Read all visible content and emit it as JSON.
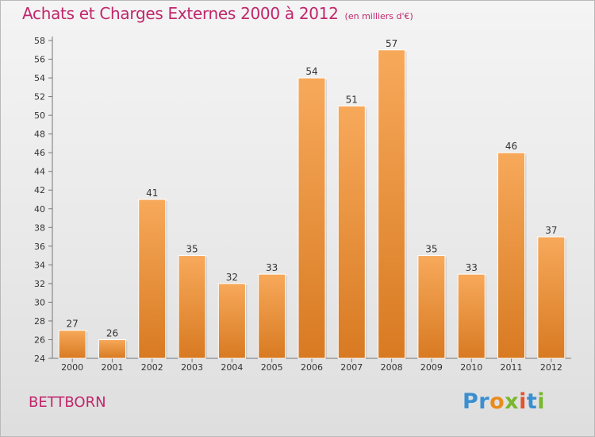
{
  "title": "Achats et Charges Externes 2000 à 2012",
  "subtitle": "(en milliers d'€)",
  "place": "BETTBORN",
  "logo": {
    "p1": "Pr",
    "p2": "o",
    "p3": "x",
    "p4": "i",
    "p5": "t",
    "p6": "i"
  },
  "colors": {
    "bar_light": "#f7a95a",
    "bar_dark": "#d87a22",
    "title": "#c0266b"
  },
  "chart_data": {
    "type": "bar",
    "categories": [
      "2000",
      "2001",
      "2002",
      "2003",
      "2004",
      "2005",
      "2006",
      "2007",
      "2008",
      "2009",
      "2010",
      "2011",
      "2012"
    ],
    "values": [
      27,
      26,
      41,
      35,
      32,
      33,
      54,
      51,
      57,
      35,
      33,
      46,
      37
    ],
    "title": "Achats et Charges Externes 2000 à 2012",
    "ylim": [
      24,
      58
    ],
    "yticks": [
      24,
      26,
      28,
      30,
      32,
      34,
      36,
      38,
      40,
      42,
      44,
      46,
      48,
      50,
      52,
      54,
      56,
      58
    ],
    "grid": false,
    "data_labels": true
  }
}
